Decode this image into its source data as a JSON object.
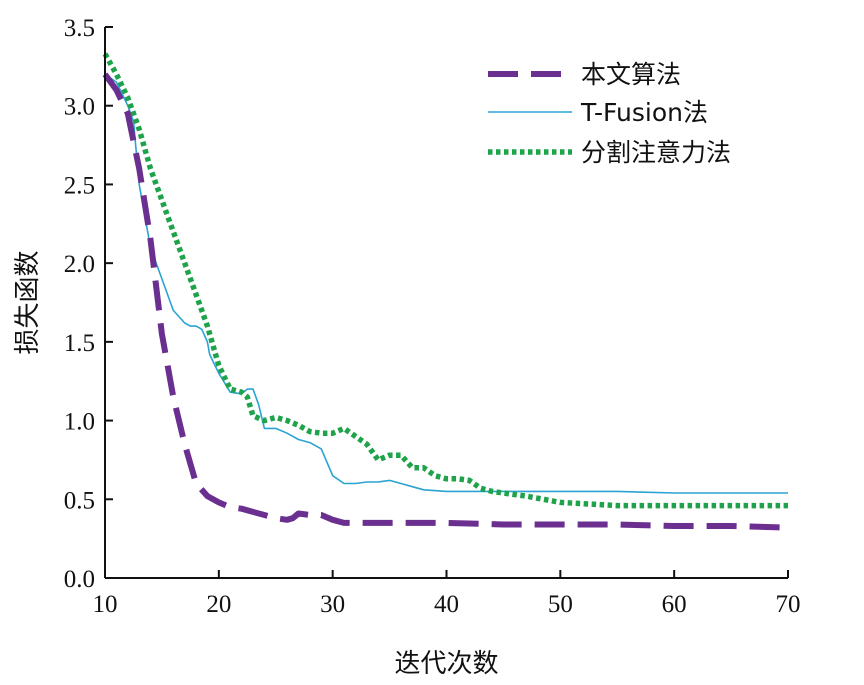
{
  "chart_data": {
    "type": "line",
    "xlabel": "迭代次数",
    "ylabel": "损失函数",
    "xlim": [
      10,
      70
    ],
    "ylim": [
      0,
      3.5
    ],
    "xticks": [
      10,
      20,
      30,
      40,
      50,
      60,
      70
    ],
    "yticks": [
      0.0,
      0.5,
      1.0,
      1.5,
      2.0,
      2.5,
      3.0,
      3.5
    ],
    "xtick_labels": [
      "10",
      "20",
      "30",
      "40",
      "50",
      "60",
      "70"
    ],
    "ytick_labels": [
      "0.0",
      "0.5",
      "1.0",
      "1.5",
      "2.0",
      "2.5",
      "3.0",
      "3.5"
    ],
    "grid": false,
    "legend_position": "top-right",
    "series": [
      {
        "name": "本文算法",
        "color": "#6a2f8f",
        "style": "dashed",
        "x": [
          10,
          11,
          12,
          13,
          14,
          15,
          16,
          17,
          18,
          18.5,
          19,
          20,
          21,
          22,
          23,
          24,
          25,
          26,
          26.5,
          27,
          28,
          29,
          30,
          31,
          35,
          40,
          45,
          50,
          55,
          60,
          65,
          70
        ],
        "y": [
          3.2,
          3.1,
          2.95,
          2.6,
          2.15,
          1.55,
          1.15,
          0.85,
          0.6,
          0.56,
          0.52,
          0.48,
          0.45,
          0.44,
          0.42,
          0.4,
          0.38,
          0.37,
          0.38,
          0.41,
          0.4,
          0.4,
          0.37,
          0.35,
          0.35,
          0.35,
          0.34,
          0.34,
          0.34,
          0.33,
          0.33,
          0.32
        ]
      },
      {
        "name": "T-Fusion法",
        "color": "#2aa3d3",
        "style": "solid",
        "x": [
          10,
          11,
          12,
          12.5,
          13,
          13.5,
          14,
          15,
          16,
          17,
          17.5,
          18,
          18.5,
          19,
          19.2,
          20,
          21,
          22,
          22.5,
          23,
          23.5,
          24,
          25,
          26,
          27,
          28,
          29,
          30,
          31,
          32,
          33,
          34,
          35,
          36,
          37,
          38,
          40,
          42,
          44,
          45,
          50,
          55,
          60,
          65,
          70
        ],
        "y": [
          3.2,
          3.15,
          3.0,
          2.9,
          2.5,
          2.3,
          2.1,
          1.9,
          1.7,
          1.62,
          1.6,
          1.6,
          1.58,
          1.5,
          1.42,
          1.3,
          1.18,
          1.17,
          1.2,
          1.2,
          1.1,
          0.95,
          0.95,
          0.92,
          0.88,
          0.86,
          0.82,
          0.65,
          0.6,
          0.6,
          0.61,
          0.61,
          0.62,
          0.6,
          0.58,
          0.56,
          0.55,
          0.55,
          0.55,
          0.55,
          0.55,
          0.55,
          0.54,
          0.54,
          0.54
        ]
      },
      {
        "name": "分割注意力法",
        "color": "#1fa34a",
        "style": "dotted",
        "x": [
          10,
          11,
          12,
          13,
          14,
          15,
          16,
          17,
          18,
          19,
          20,
          21,
          22,
          22.5,
          23,
          24,
          25,
          26,
          27,
          28,
          29,
          30,
          31,
          32,
          33,
          34,
          35,
          36,
          37,
          38,
          39,
          40,
          41,
          42,
          43,
          44,
          45,
          47,
          50,
          55,
          60,
          65,
          70
        ],
        "y": [
          3.33,
          3.2,
          3.05,
          2.85,
          2.6,
          2.4,
          2.2,
          2.0,
          1.8,
          1.6,
          1.35,
          1.2,
          1.18,
          1.15,
          1.03,
          1.0,
          1.02,
          1.0,
          0.97,
          0.93,
          0.92,
          0.92,
          0.95,
          0.9,
          0.85,
          0.75,
          0.78,
          0.78,
          0.7,
          0.7,
          0.65,
          0.63,
          0.63,
          0.62,
          0.57,
          0.55,
          0.54,
          0.52,
          0.48,
          0.46,
          0.46,
          0.46,
          0.46
        ]
      }
    ]
  }
}
